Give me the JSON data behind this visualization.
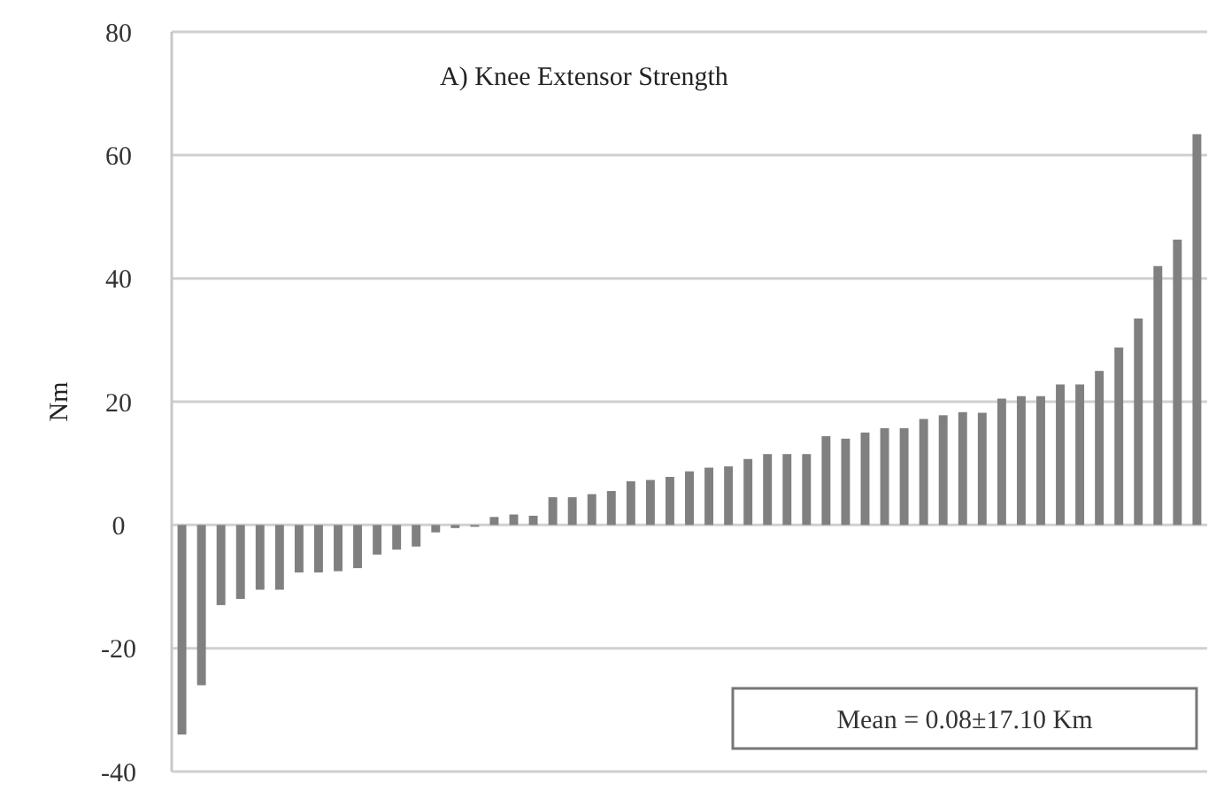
{
  "chart_data": {
    "type": "bar",
    "title": "A) Knee Extensor Strength",
    "ylabel": "Nm",
    "categories": [
      null,
      null,
      null,
      null,
      null,
      null,
      null,
      null,
      null,
      null,
      null,
      null,
      null,
      null,
      null,
      null,
      null,
      null,
      null,
      null,
      null,
      null,
      null,
      null,
      null,
      null,
      null,
      null,
      null,
      null,
      null,
      null,
      null,
      null,
      null,
      null,
      null,
      null,
      null,
      null,
      null,
      null,
      null,
      null,
      null,
      null,
      null,
      null,
      null,
      null,
      null,
      null,
      null
    ],
    "values": [
      -34,
      -26,
      -13,
      -12,
      -10.5,
      -10.5,
      -7.7,
      -7.7,
      -7.5,
      -7,
      -4.8,
      -4,
      -3.5,
      -1.2,
      -0.5,
      -0.3,
      1.3,
      1.7,
      1.5,
      4.5,
      4.5,
      5,
      5.5,
      7.1,
      7.3,
      7.8,
      8.7,
      9.3,
      9.5,
      10.7,
      11.5,
      11.5,
      11.5,
      14.4,
      14,
      15,
      15.7,
      15.7,
      17.2,
      17.8,
      18.3,
      18.2,
      20.5,
      20.9,
      20.9,
      22.8,
      22.8,
      25,
      28.8,
      33.5,
      42,
      46.3,
      63.4
    ],
    "color": "#808080",
    "ylim": [
      -40,
      80
    ],
    "yticks": [
      -40,
      -20,
      0,
      20,
      40,
      60,
      80
    ],
    "grid": "y",
    "annotations": [
      "Mean = 0.08±17.10 Km"
    ]
  }
}
